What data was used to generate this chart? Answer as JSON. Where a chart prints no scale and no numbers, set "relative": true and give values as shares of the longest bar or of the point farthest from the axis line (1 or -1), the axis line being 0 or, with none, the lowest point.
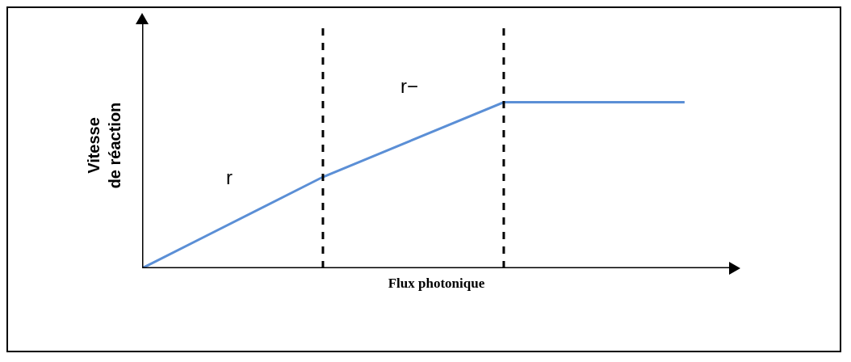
{
  "chart_data": {
    "type": "line",
    "relative": true,
    "xlabel": "Flux photonique",
    "ylabel": "Vitesse de réaction",
    "categories": [
      null,
      null,
      null,
      null
    ],
    "grid": false,
    "marker": "none",
    "line_style": "solid",
    "series": [
      {
        "color": "#5b8fd6",
        "values": [
          0,
          0.55,
          1,
          1
        ]
      }
    ],
    "annotations": [
      "r",
      "r−"
    ]
  }
}
